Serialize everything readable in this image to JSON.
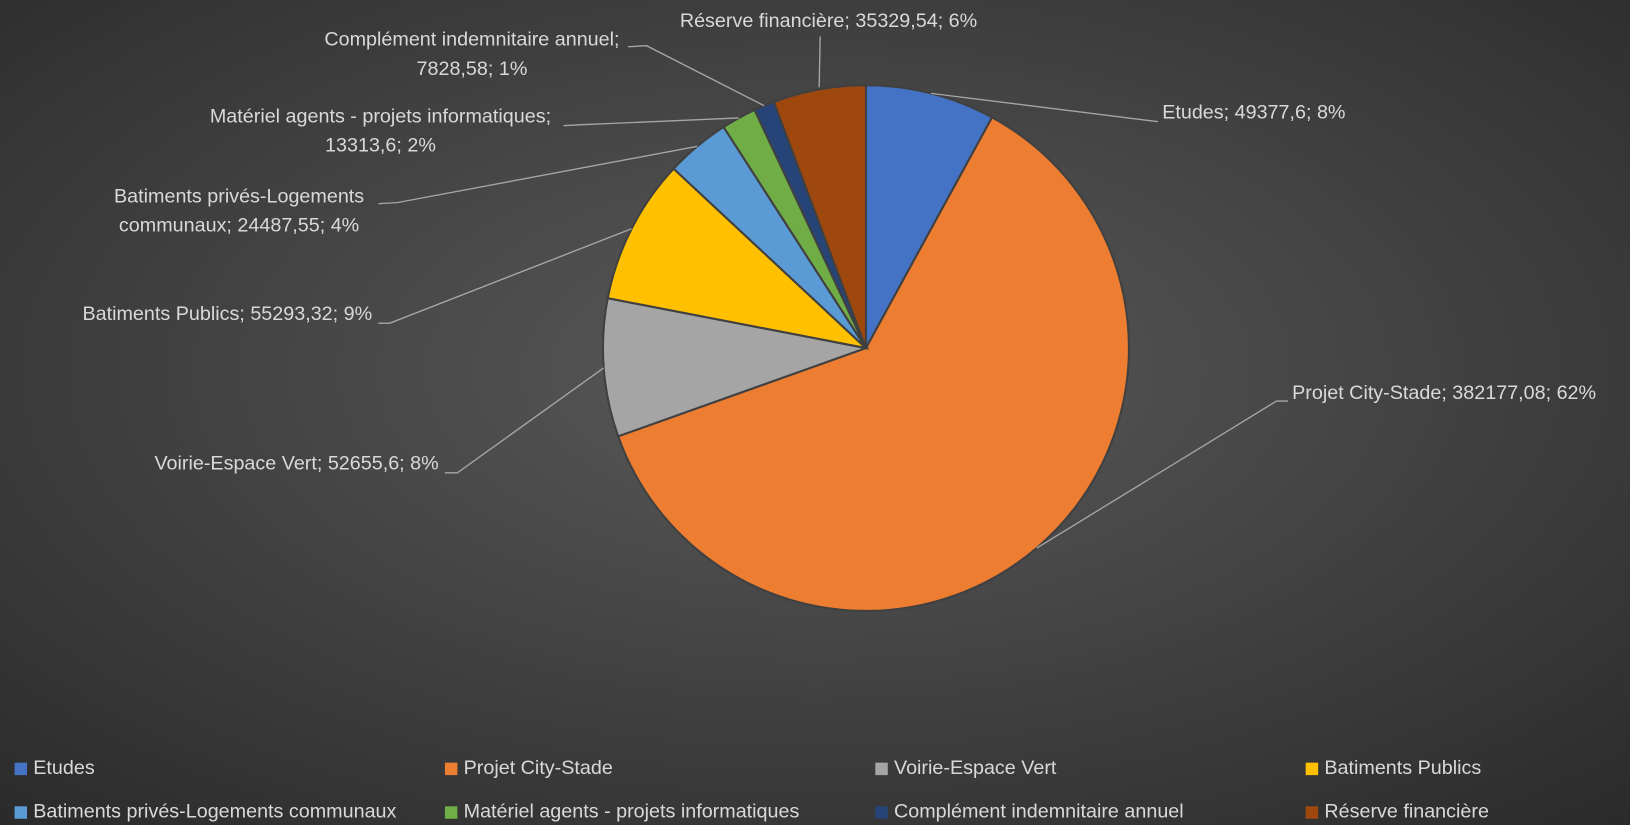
{
  "chart_data": {
    "type": "pie",
    "categories": [
      "Etudes",
      "Projet City-Stade",
      "Voirie-Espace Vert",
      "Batiments Publics",
      "Batiments privés-Logements communaux",
      "Matériel agents - projets informatiques",
      "Complément indemnitaire annuel",
      "Réserve financière"
    ],
    "values": [
      49377.6,
      382177.08,
      52655.6,
      55293.32,
      24487.55,
      13313.6,
      7828.58,
      35329.54
    ],
    "value_labels": [
      [
        "Etudes; 49377,6; 8%"
      ],
      [
        "Projet City-Stade; 382177,08; 62%"
      ],
      [
        "Voirie-Espace Vert; 52655,6; 8%"
      ],
      [
        "Batiments Publics; 55293,32; 9%"
      ],
      [
        "Batiments privés-Logements",
        "communaux; 24487,55; 4%"
      ],
      [
        "Matériel agents - projets informatiques;",
        "13313,6; 2%"
      ],
      [
        "Complément indemnitaire annuel;",
        "7828,58; 1%"
      ],
      [
        "Réserve financière; 35329,54; 6%"
      ]
    ],
    "colors": [
      "#4472c4",
      "#ed7d31",
      "#a5a5a5",
      "#ffc000",
      "#5b9bd5",
      "#70ad47",
      "#264478",
      "#9e480e"
    ],
    "legend": "bottom"
  }
}
